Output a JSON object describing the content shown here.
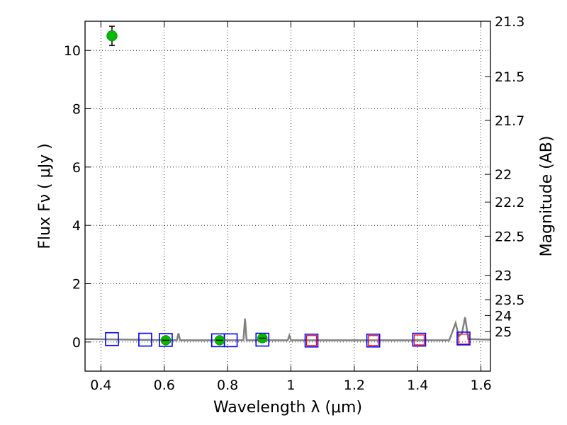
{
  "chart_data": {
    "type": "scatter",
    "title": "",
    "xlabel": "Wavelength  λ (μm)",
    "ylabel": "Flux  Fν  ( μJy )",
    "ylabel_right": "Magnitude (AB)",
    "xlim": [
      0.35,
      1.63
    ],
    "ylim": [
      -1.0,
      11.0
    ],
    "grid": true,
    "x_ticks": [
      {
        "value": 0.4,
        "label": "0.4"
      },
      {
        "value": 0.6,
        "label": "0.6"
      },
      {
        "value": 0.8,
        "label": "0.8"
      },
      {
        "value": 1.0,
        "label": "1"
      },
      {
        "value": 1.2,
        "label": "1.2"
      },
      {
        "value": 1.4,
        "label": "1.4"
      },
      {
        "value": 1.6,
        "label": "1.6"
      }
    ],
    "y_ticks": [
      {
        "value": 0,
        "label": "0"
      },
      {
        "value": 2,
        "label": "2"
      },
      {
        "value": 4,
        "label": "4"
      },
      {
        "value": 6,
        "label": "6"
      },
      {
        "value": 8,
        "label": "8"
      },
      {
        "value": 10,
        "label": "10"
      }
    ],
    "y_right_ticks": [
      {
        "flux": 11.0,
        "label": "21.3"
      },
      {
        "flux": 9.1,
        "label": "21.5"
      },
      {
        "flux": 7.6,
        "label": "21.7"
      },
      {
        "flux": 5.75,
        "label": "22"
      },
      {
        "flux": 4.8,
        "label": "22.2"
      },
      {
        "flux": 3.63,
        "label": "22.5"
      },
      {
        "flux": 2.29,
        "label": "23"
      },
      {
        "flux": 1.45,
        "label": "23.5"
      },
      {
        "flux": 0.91,
        "label": "24"
      },
      {
        "flux": 0.36,
        "label": "25"
      }
    ],
    "series": [
      {
        "kind": "line",
        "color": "#808080",
        "x": [
          0.35,
          0.64,
          0.645,
          0.65,
          0.85,
          0.855,
          0.86,
          0.865,
          0.9,
          0.905,
          0.91,
          0.99,
          0.995,
          1.0,
          1.5,
          1.52,
          1.53,
          1.54,
          1.55,
          1.56,
          1.63
        ],
        "y": [
          0.1,
          0.06,
          0.3,
          0.06,
          0.06,
          0.8,
          0.06,
          0.06,
          0.06,
          0.3,
          0.06,
          0.06,
          0.22,
          0.06,
          0.06,
          0.65,
          0.2,
          0.3,
          0.85,
          0.1,
          0.08
        ]
      },
      {
        "kind": "model_points",
        "marker": "square",
        "edgecolor": "#0000ff",
        "x": [
          0.435,
          0.54,
          0.605,
          0.77,
          0.81,
          0.91,
          1.065,
          1.26,
          1.405,
          1.545
        ],
        "y": [
          0.1,
          0.08,
          0.07,
          0.06,
          0.06,
          0.08,
          0.05,
          0.05,
          0.08,
          0.12
        ]
      },
      {
        "kind": "photometry_points",
        "marker": "square",
        "edgecolor": "#ff0000",
        "x": [
          1.065,
          1.26,
          1.405,
          1.545
        ],
        "y": [
          0.05,
          0.05,
          0.07,
          0.1
        ]
      },
      {
        "kind": "detections",
        "marker": "circle",
        "color": "#00bb00",
        "x": [
          0.435,
          0.605,
          0.775,
          0.91
        ],
        "y": [
          10.5,
          0.06,
          0.06,
          0.13
        ],
        "yerr": [
          0.33,
          0.03,
          0.03,
          0.06
        ]
      }
    ]
  }
}
